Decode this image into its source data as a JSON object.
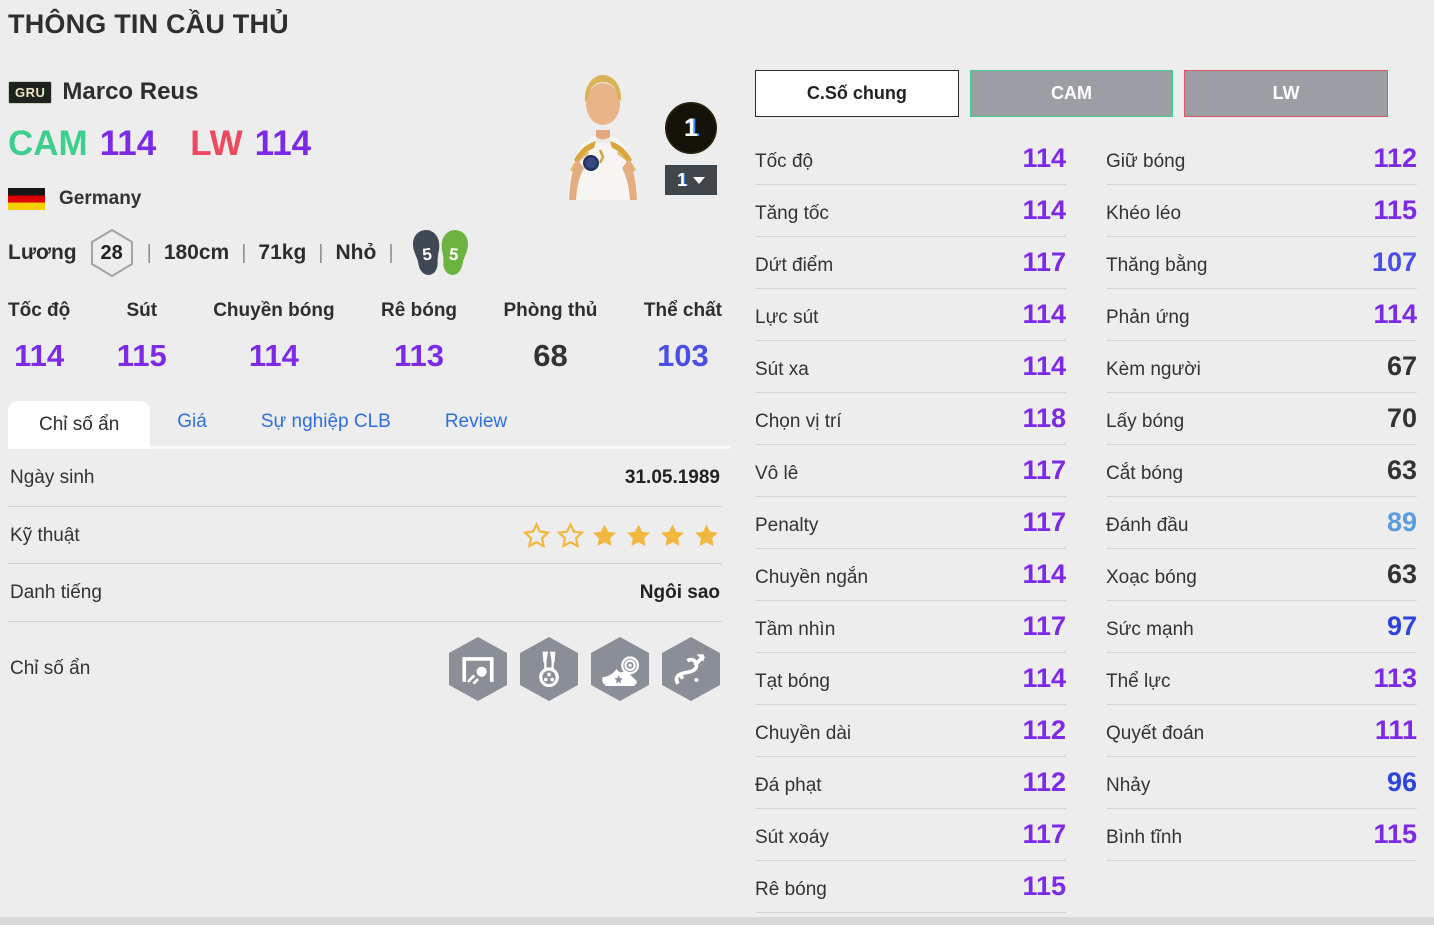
{
  "page": {
    "title": "THÔNG TIN CẦU THỦ"
  },
  "player": {
    "season_badge": "GRU",
    "name": "Marco Reus",
    "positions": [
      {
        "label": "CAM",
        "color": "#3ecf8e",
        "rating": "114"
      },
      {
        "label": "LW",
        "color": "#ed4a5f",
        "rating": "114"
      }
    ],
    "rating_color": "#7d2ae8",
    "nation": "Germany",
    "salary_label": "Lương",
    "salary": "28",
    "info_separator": "|",
    "height": "180cm",
    "weight": "71kg",
    "body_type": "Nhỏ",
    "weak_foot": "5",
    "strong_foot": "5",
    "upgrade_level": "1",
    "upgrade_dropdown_value": "1"
  },
  "summary_stats": [
    {
      "label": "Tốc độ",
      "value": "114",
      "color": "#7d2ae8"
    },
    {
      "label": "Sút",
      "value": "115",
      "color": "#7d2ae8"
    },
    {
      "label": "Chuyền bóng",
      "value": "114",
      "color": "#7d2ae8"
    },
    {
      "label": "Rê bóng",
      "value": "113",
      "color": "#7d2ae8"
    },
    {
      "label": "Phòng thủ",
      "value": "68",
      "color": "#333333"
    },
    {
      "label": "Thể chất",
      "value": "103",
      "color": "#4a4ee8"
    }
  ],
  "tabs": [
    {
      "label": "Chỉ số ẩn",
      "active": true
    },
    {
      "label": "Giá",
      "active": false
    },
    {
      "label": "Sự nghiệp CLB",
      "active": false
    },
    {
      "label": "Review",
      "active": false
    }
  ],
  "info_table": {
    "birth_label": "Ngày sinh",
    "birth_value": "31.05.1989",
    "skill_label": "Kỹ thuật",
    "skill_stars": [
      "empty",
      "empty",
      "full",
      "full",
      "full",
      "full"
    ],
    "fame_label": "Danh tiếng",
    "fame_value": "Ngôi sao",
    "traits_label": "Chỉ số ẩn",
    "trait_icons": [
      "goal-finish-icon",
      "medal-ball-icon",
      "boot-target-icon",
      "dribble-path-icon"
    ]
  },
  "detail_panel": {
    "buttons": [
      {
        "label": "C.Số chung",
        "type": "general",
        "border": "#2a2a2a"
      },
      {
        "label": "CAM",
        "type": "cam",
        "border": "#3ecf8e"
      },
      {
        "label": "LW",
        "type": "lw",
        "border": "#e0556a"
      }
    ],
    "columns": [
      {
        "stats": [
          {
            "label": "Tốc độ",
            "value": "114",
            "color": "#7d2ae8"
          },
          {
            "label": "Tăng tốc",
            "value": "114",
            "color": "#7d2ae8"
          },
          {
            "label": "Dứt điểm",
            "value": "117",
            "color": "#7d2ae8"
          },
          {
            "label": "Lực sút",
            "value": "114",
            "color": "#7d2ae8"
          },
          {
            "label": "Sút xa",
            "value": "114",
            "color": "#7d2ae8"
          },
          {
            "label": "Chọn vị trí",
            "value": "118",
            "color": "#7d2ae8"
          },
          {
            "label": "Vô lê",
            "value": "117",
            "color": "#7d2ae8"
          },
          {
            "label": "Penalty",
            "value": "117",
            "color": "#7d2ae8"
          },
          {
            "label": "Chuyền ngắn",
            "value": "114",
            "color": "#7d2ae8"
          },
          {
            "label": "Tầm nhìn",
            "value": "117",
            "color": "#7d2ae8"
          },
          {
            "label": "Tạt bóng",
            "value": "114",
            "color": "#7d2ae8"
          },
          {
            "label": "Chuyền dài",
            "value": "112",
            "color": "#7d2ae8"
          },
          {
            "label": "Đá phạt",
            "value": "112",
            "color": "#7d2ae8"
          },
          {
            "label": "Sút xoáy",
            "value": "117",
            "color": "#7d2ae8"
          },
          {
            "label": "Rê bóng",
            "value": "115",
            "color": "#7d2ae8"
          }
        ]
      },
      {
        "stats": [
          {
            "label": "Giữ bóng",
            "value": "112",
            "color": "#7d2ae8"
          },
          {
            "label": "Khéo léo",
            "value": "115",
            "color": "#7d2ae8"
          },
          {
            "label": "Thăng bằng",
            "value": "107",
            "color": "#4a4ee8"
          },
          {
            "label": "Phản ứng",
            "value": "114",
            "color": "#7d2ae8"
          },
          {
            "label": "Kèm người",
            "value": "67",
            "color": "#333333"
          },
          {
            "label": "Lấy bóng",
            "value": "70",
            "color": "#333333"
          },
          {
            "label": "Cắt bóng",
            "value": "63",
            "color": "#333333"
          },
          {
            "label": "Đánh đầu",
            "value": "89",
            "color": "#5b9be0"
          },
          {
            "label": "Xoạc bóng",
            "value": "63",
            "color": "#333333"
          },
          {
            "label": "Sức mạnh",
            "value": "97",
            "color": "#2d43dd"
          },
          {
            "label": "Thể lực",
            "value": "113",
            "color": "#7d2ae8"
          },
          {
            "label": "Quyết đoán",
            "value": "111",
            "color": "#7d2ae8"
          },
          {
            "label": "Nhảy",
            "value": "96",
            "color": "#2d43dd"
          },
          {
            "label": "Bình tĩnh",
            "value": "115",
            "color": "#7d2ae8"
          }
        ]
      }
    ]
  }
}
